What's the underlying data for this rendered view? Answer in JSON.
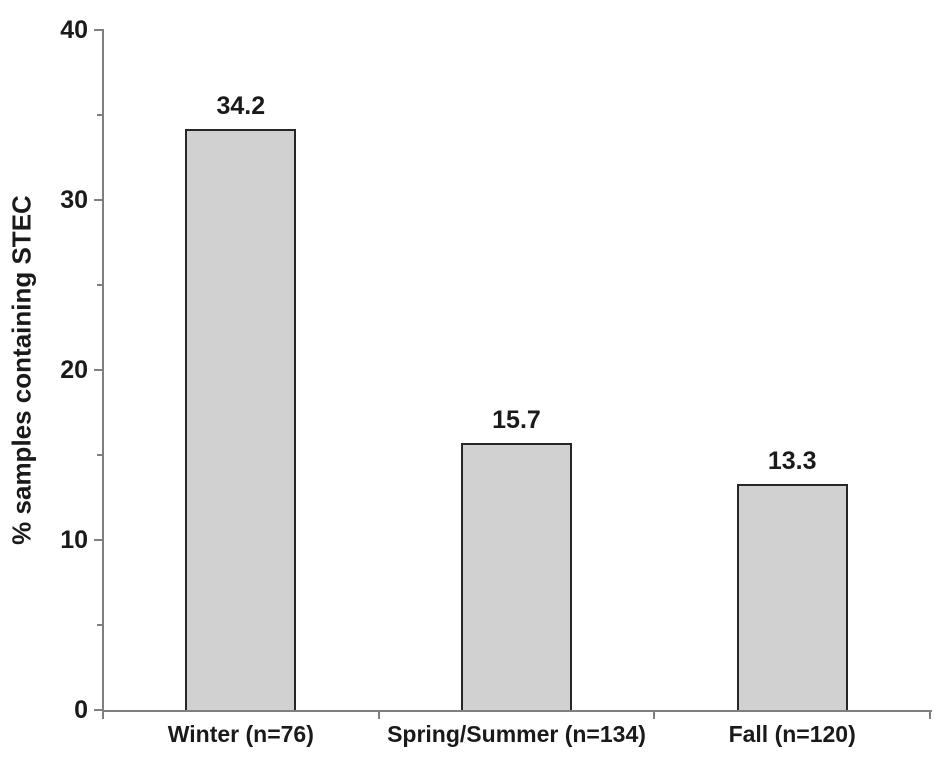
{
  "chart_data": {
    "type": "bar",
    "title": "",
    "xlabel": "",
    "ylabel": "% samples containing STEC",
    "categories": [
      "Winter (n=76)",
      "Spring/Summer (n=134)",
      "Fall (n=120)"
    ],
    "values": [
      34.2,
      15.7,
      13.3
    ],
    "bar_labels": [
      "34.2",
      "15.7",
      "13.3"
    ],
    "ylim": [
      0,
      40
    ],
    "y_major_ticks": [
      0,
      10,
      20,
      30,
      40
    ],
    "y_minor_ticks": [
      5,
      15,
      25,
      35
    ],
    "grid": false,
    "legend": false,
    "colors": {
      "bar_fill": "#d1d1d1",
      "bar_border": "#262626",
      "axis": "#7f7f7f",
      "text": "#1a1a1a",
      "background": "#ffffff"
    }
  }
}
